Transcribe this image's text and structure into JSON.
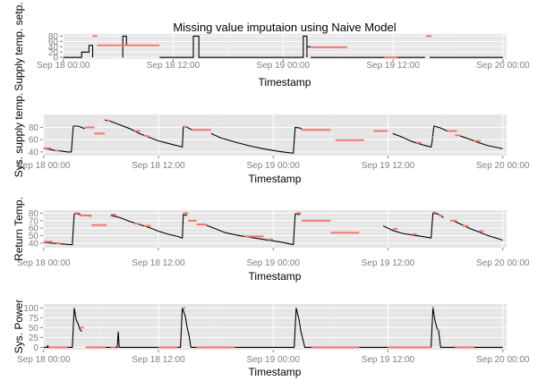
{
  "title": "Missing value imputaion using Naive Model",
  "colors": {
    "observed": "#000000",
    "imputed": "#f8766d",
    "panel": "#e5e5e5"
  },
  "chart_data": [
    {
      "type": "line",
      "ylabel": "Supply temp. setp.",
      "xlabel": "Timestamp",
      "xticks": [
        "Sep 18 00:00",
        "Sep 18 12:00",
        "Sep 19 00:00",
        "Sep 19 12:00",
        "Sep 20 00:00"
      ],
      "xlim": [
        -0.07,
        48.4
      ],
      "yticks": [
        0,
        20,
        40,
        60,
        80
      ],
      "ylim": [
        -6,
        88
      ],
      "observed": [
        [
          [
            0.0,
            0
          ],
          [
            1.5,
            0
          ],
          [
            2.0,
            0
          ],
          [
            2.0,
            20
          ],
          [
            2.8,
            20
          ],
          [
            2.8,
            45
          ],
          [
            3.2,
            45
          ],
          [
            3.2,
            0
          ]
        ],
        [
          [
            6.5,
            0
          ],
          [
            6.5,
            80
          ],
          [
            6.9,
            80
          ],
          [
            6.9,
            45
          ],
          [
            7.2,
            45
          ]
        ],
        [
          [
            10.5,
            0
          ],
          [
            14.2,
            0
          ],
          [
            14.2,
            80
          ],
          [
            14.8,
            80
          ],
          [
            14.8,
            0
          ],
          [
            16,
            0
          ],
          [
            26.2,
            0
          ],
          [
            26.2,
            80
          ],
          [
            26.6,
            80
          ],
          [
            26.6,
            0
          ]
        ],
        [
          [
            26.6,
            40
          ],
          [
            27.0,
            40
          ]
        ],
        [
          [
            27.0,
            0
          ],
          [
            39.5,
            0
          ]
        ],
        [
          [
            40.0,
            0
          ],
          [
            48.0,
            0
          ]
        ]
      ],
      "imputed": [
        [
          [
            3.2,
            80
          ],
          [
            3.7,
            80
          ]
        ],
        [
          [
            3.7,
            45
          ],
          [
            10.5,
            45
          ]
        ],
        [
          [
            27.0,
            38
          ],
          [
            31.0,
            38
          ]
        ],
        [
          [
            35.0,
            0
          ],
          [
            36.5,
            0
          ]
        ],
        [
          [
            39.6,
            80
          ],
          [
            40.2,
            80
          ]
        ]
      ]
    },
    {
      "type": "line",
      "ylabel": "Sys. supply temp.",
      "xlabel": "Timestamp",
      "xticks": [
        "Sep 18 00:00",
        "Sep 18 12:00",
        "Sep 19 00:00",
        "Sep 19 12:00",
        "Sep 20 00:00"
      ],
      "xlim": [
        -0.07,
        48.4
      ],
      "yticks": [
        40,
        60,
        80
      ],
      "ylim": [
        34,
        101
      ],
      "observed": [
        [
          [
            0.0,
            46
          ],
          [
            1.0,
            43
          ],
          [
            1.5,
            42
          ],
          [
            2.0,
            41
          ],
          [
            2.5,
            40
          ],
          [
            2.9,
            40
          ],
          [
            3.1,
            82
          ],
          [
            3.6,
            82
          ],
          [
            4.3,
            78
          ]
        ],
        [
          [
            6.4,
            92
          ],
          [
            7.0,
            90
          ],
          [
            9.0,
            78
          ],
          [
            10.0,
            70
          ],
          [
            11.0,
            64
          ],
          [
            12.0,
            58
          ],
          [
            13.0,
            54
          ],
          [
            14.0,
            50
          ],
          [
            14.5,
            48
          ],
          [
            14.6,
            81
          ],
          [
            15.0,
            80
          ],
          [
            15.5,
            76
          ]
        ],
        [
          [
            17.5,
            70
          ],
          [
            18.5,
            63
          ],
          [
            20.0,
            56
          ],
          [
            21.5,
            50
          ],
          [
            23.0,
            45
          ],
          [
            24.5,
            41
          ],
          [
            25.5,
            39
          ],
          [
            26.1,
            38
          ],
          [
            26.3,
            80
          ],
          [
            26.8,
            79
          ],
          [
            27.0,
            77
          ]
        ],
        [
          [
            36.5,
            70
          ],
          [
            37.5,
            64
          ],
          [
            38.5,
            57
          ],
          [
            39.5,
            52
          ],
          [
            40.5,
            48
          ],
          [
            40.6,
            55
          ],
          [
            40.8,
            82
          ],
          [
            41.5,
            79
          ],
          [
            42.2,
            74
          ]
        ],
        [
          [
            43.2,
            68
          ],
          [
            44.5,
            61
          ],
          [
            45.5,
            55
          ],
          [
            46.5,
            50
          ],
          [
            47.5,
            47
          ],
          [
            48.0,
            45
          ]
        ]
      ],
      "imputed": [
        [
          [
            0.0,
            46
          ],
          [
            0.8,
            46
          ]
        ],
        [
          [
            1.2,
            42
          ],
          [
            1.6,
            42
          ]
        ],
        [
          [
            4.3,
            80
          ],
          [
            5.3,
            80
          ]
        ],
        [
          [
            5.3,
            70
          ],
          [
            6.4,
            70
          ]
        ],
        [
          [
            6.6,
            91
          ],
          [
            6.9,
            91
          ]
        ],
        [
          [
            9.5,
            74
          ],
          [
            10.1,
            74
          ]
        ],
        [
          [
            10.5,
            66
          ],
          [
            11.0,
            66
          ]
        ],
        [
          [
            14.6,
            81
          ],
          [
            15.0,
            81
          ]
        ],
        [
          [
            15.5,
            76
          ],
          [
            17.5,
            76
          ]
        ],
        [
          [
            27.0,
            76
          ],
          [
            30.0,
            76
          ]
        ],
        [
          [
            30.5,
            59
          ],
          [
            33.5,
            59
          ]
        ],
        [
          [
            34.5,
            74
          ],
          [
            36.0,
            74
          ]
        ],
        [
          [
            39.0,
            55
          ],
          [
            39.5,
            55
          ]
        ],
        [
          [
            40.6,
            64
          ],
          [
            40.7,
            64
          ]
        ],
        [
          [
            42.2,
            74
          ],
          [
            43.2,
            74
          ]
        ],
        [
          [
            43.0,
            67
          ],
          [
            43.6,
            67
          ]
        ],
        [
          [
            45.0,
            58
          ],
          [
            45.7,
            58
          ]
        ]
      ]
    },
    {
      "type": "line",
      "ylabel": "Return Temp.",
      "xlabel": "Timestamp",
      "xticks": [
        "Sep 18 00:00",
        "Sep 18 12:00",
        "Sep 19 00:00",
        "Sep 19 12:00",
        "Sep 20 00:00"
      ],
      "xlim": [
        -0.07,
        48.4
      ],
      "yticks": [
        40,
        50,
        60,
        70,
        80
      ],
      "ylim": [
        34,
        84
      ],
      "observed": [
        [
          [
            0.0,
            41
          ],
          [
            1.0,
            40
          ],
          [
            2.0,
            39
          ],
          [
            2.8,
            38
          ],
          [
            3.0,
            38
          ],
          [
            3.2,
            79
          ],
          [
            3.6,
            79
          ],
          [
            4.0,
            77
          ],
          [
            5.0,
            76
          ]
        ],
        [
          [
            7.0,
            77
          ],
          [
            8.0,
            74
          ],
          [
            9.0,
            69
          ],
          [
            10.0,
            65
          ],
          [
            11.0,
            61
          ],
          [
            12.0,
            56
          ],
          [
            13.0,
            52
          ],
          [
            14.0,
            49
          ],
          [
            14.5,
            47
          ],
          [
            14.6,
            78
          ],
          [
            15.0,
            77
          ]
        ],
        [
          [
            17.0,
            64
          ],
          [
            18.0,
            59
          ],
          [
            19.0,
            54
          ],
          [
            20.5,
            50
          ],
          [
            22.0,
            47
          ],
          [
            23.5,
            44
          ],
          [
            25.0,
            41
          ],
          [
            26.1,
            38
          ],
          [
            26.3,
            79
          ],
          [
            26.8,
            78
          ]
        ],
        [
          [
            35.5,
            63
          ],
          [
            36.5,
            57
          ],
          [
            37.5,
            53
          ],
          [
            38.5,
            51
          ],
          [
            40.0,
            48
          ],
          [
            40.5,
            47
          ],
          [
            40.7,
            80
          ],
          [
            41.2,
            79
          ],
          [
            41.8,
            74
          ]
        ],
        [
          [
            42.8,
            70
          ],
          [
            43.5,
            66
          ],
          [
            44.5,
            60
          ],
          [
            45.5,
            55
          ],
          [
            46.5,
            50
          ],
          [
            47.5,
            46
          ],
          [
            48.0,
            44
          ]
        ]
      ],
      "imputed": [
        [
          [
            0.0,
            42
          ],
          [
            0.9,
            42
          ]
        ],
        [
          [
            1.3,
            40
          ],
          [
            1.8,
            40
          ]
        ],
        [
          [
            3.2,
            80
          ],
          [
            3.8,
            80
          ]
        ],
        [
          [
            3.8,
            77
          ],
          [
            5.0,
            77
          ]
        ],
        [
          [
            5.0,
            64
          ],
          [
            6.6,
            64
          ]
        ],
        [
          [
            7.0,
            78
          ],
          [
            7.6,
            78
          ]
        ],
        [
          [
            9.5,
            66
          ],
          [
            10.0,
            66
          ]
        ],
        [
          [
            10.5,
            63
          ],
          [
            11.2,
            63
          ]
        ],
        [
          [
            14.6,
            80
          ],
          [
            15.1,
            80
          ]
        ],
        [
          [
            15.1,
            70
          ],
          [
            16.0,
            70
          ]
        ],
        [
          [
            16.0,
            65
          ],
          [
            17.0,
            65
          ]
        ],
        [
          [
            21.0,
            49
          ],
          [
            23.0,
            49
          ]
        ],
        [
          [
            23.5,
            45
          ],
          [
            24.0,
            45
          ]
        ],
        [
          [
            26.4,
            80
          ],
          [
            26.9,
            80
          ]
        ],
        [
          [
            27.0,
            70
          ],
          [
            30.0,
            70
          ]
        ],
        [
          [
            30.0,
            54
          ],
          [
            33.0,
            54
          ]
        ],
        [
          [
            36.5,
            59
          ],
          [
            37.0,
            59
          ]
        ],
        [
          [
            38.5,
            52
          ],
          [
            39.0,
            52
          ]
        ],
        [
          [
            40.7,
            81
          ],
          [
            41.0,
            81
          ]
        ],
        [
          [
            41.3,
            77
          ],
          [
            41.7,
            77
          ]
        ],
        [
          [
            42.5,
            70
          ],
          [
            43.2,
            70
          ]
        ],
        [
          [
            43.8,
            63
          ],
          [
            44.4,
            63
          ]
        ],
        [
          [
            45.5,
            56
          ],
          [
            46.0,
            56
          ]
        ]
      ]
    },
    {
      "type": "line",
      "ylabel": "Sys. Power",
      "xlabel": "Timestamp",
      "xticks": [
        "Sep 18 00:00",
        "Sep 18 12:00",
        "Sep 19 00:00",
        "Sep 19 12:00",
        "Sep 20 00:00"
      ],
      "xlim": [
        -0.07,
        48.4
      ],
      "yticks": [
        0,
        25,
        50,
        75,
        100
      ],
      "ylim": [
        -6,
        110
      ],
      "observed": [
        [
          [
            0.0,
            0
          ],
          [
            0.4,
            0
          ],
          [
            0.4,
            5
          ],
          [
            0.5,
            0
          ],
          [
            3.0,
            0
          ],
          [
            3.2,
            100
          ],
          [
            3.4,
            70
          ],
          [
            3.6,
            60
          ],
          [
            3.8,
            45
          ],
          [
            4.0,
            40
          ]
        ],
        [
          [
            4.4,
            0
          ],
          [
            7.5,
            0
          ],
          [
            7.7,
            0
          ],
          [
            7.8,
            40
          ],
          [
            7.9,
            0
          ],
          [
            12.0,
            0
          ]
        ],
        [
          [
            14.0,
            0
          ],
          [
            14.3,
            0
          ],
          [
            14.5,
            100
          ],
          [
            14.8,
            80
          ],
          [
            15.0,
            50
          ],
          [
            15.2,
            30
          ],
          [
            15.4,
            0
          ],
          [
            16.0,
            0
          ]
        ],
        [
          [
            20.0,
            0
          ],
          [
            25.0,
            0
          ],
          [
            26.2,
            0
          ],
          [
            26.4,
            100
          ],
          [
            26.7,
            70
          ],
          [
            26.9,
            40
          ],
          [
            27.1,
            20
          ],
          [
            27.3,
            0
          ],
          [
            28.0,
            0
          ]
        ],
        [
          [
            33.0,
            0
          ],
          [
            36.0,
            0
          ],
          [
            40.5,
            0
          ],
          [
            40.7,
            100
          ],
          [
            40.9,
            70
          ],
          [
            41.1,
            50
          ],
          [
            41.3,
            40
          ],
          [
            41.5,
            0
          ],
          [
            48.0,
            0
          ]
        ]
      ],
      "imputed": [
        [
          [
            0.5,
            0
          ],
          [
            2.5,
            0
          ]
        ],
        [
          [
            3.8,
            50
          ],
          [
            4.2,
            50
          ]
        ],
        [
          [
            4.4,
            0
          ],
          [
            6.5,
            0
          ]
        ],
        [
          [
            7.0,
            0
          ],
          [
            7.5,
            0
          ]
        ],
        [
          [
            12.0,
            0
          ],
          [
            14.0,
            0
          ]
        ],
        [
          [
            14.6,
            100
          ],
          [
            14.8,
            100
          ]
        ],
        [
          [
            16.0,
            0
          ],
          [
            20.0,
            0
          ]
        ],
        [
          [
            28.0,
            0
          ],
          [
            33.0,
            0
          ]
        ],
        [
          [
            36.0,
            0
          ],
          [
            40.5,
            0
          ]
        ],
        [
          [
            40.6,
            101
          ],
          [
            40.8,
            101
          ]
        ],
        [
          [
            41.2,
            44
          ],
          [
            41.4,
            44
          ]
        ],
        [
          [
            43.0,
            0
          ],
          [
            45.0,
            0
          ]
        ]
      ]
    }
  ]
}
